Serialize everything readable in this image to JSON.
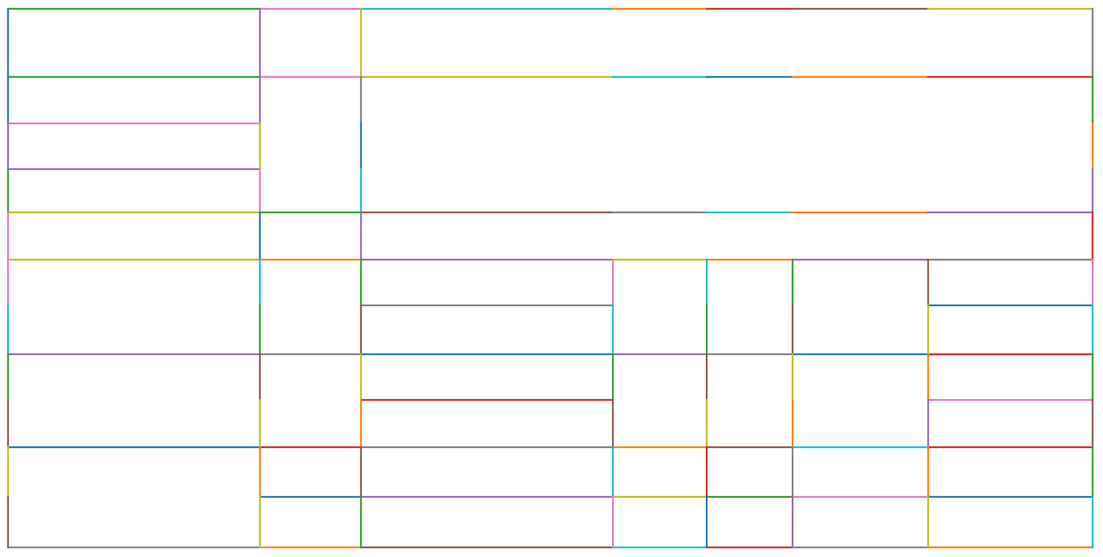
{
  "palette": {
    "blue": "#1f77b4",
    "orange": "#ff7f0e",
    "green": "#2ca02c",
    "red": "#d62728",
    "purple": "#9467bd",
    "brown": "#8c564b",
    "pink": "#e377c2",
    "gray": "#7f7f7f",
    "olive": "#bcbd22",
    "cyan": "#17becf"
  },
  "horizontal_edge_colors": [
    [
      "green",
      "pink",
      "cyan",
      "orange",
      "red",
      "brown",
      "olive"
    ],
    [
      "green",
      "pink",
      "olive",
      "cyan",
      "blue",
      "orange",
      "red"
    ],
    [
      "pink",
      null,
      null,
      null,
      null,
      null,
      null
    ],
    [
      "purple",
      null,
      null,
      null,
      null,
      null,
      null
    ],
    [
      "olive",
      "green",
      "brown",
      "gray",
      "cyan",
      "orange",
      "purple"
    ],
    [
      "olive",
      "orange",
      "purple",
      "olive",
      "orange",
      "purple",
      "gray"
    ],
    [
      null,
      null,
      "gray",
      null,
      null,
      null,
      "blue"
    ],
    [
      "purple",
      "gray",
      "blue",
      "purple",
      "gray",
      "blue",
      "red"
    ],
    [
      null,
      null,
      "red",
      null,
      null,
      null,
      "pink"
    ],
    [
      "blue",
      "red",
      "gray",
      "orange",
      "brown",
      "cyan",
      "red"
    ],
    [
      null,
      "blue",
      "purple",
      "olive",
      "green",
      "pink",
      "blue"
    ],
    [
      "gray",
      "orange",
      "brown",
      "cyan",
      "red",
      "gray",
      "orange"
    ]
  ],
  "vertical_edge_colors": [
    [
      "blue",
      "blue",
      "purple",
      "green",
      "pink",
      "pink",
      "cyan",
      "green",
      "brown",
      "olive",
      "brown"
    ],
    [
      "purple",
      "purple",
      "olive",
      "pink",
      "blue",
      "cyan",
      "green",
      "brown",
      "olive",
      "orange",
      "olive"
    ],
    [
      "olive",
      "gray",
      "blue",
      "cyan",
      "purple",
      "green",
      "brown",
      "olive",
      "orange",
      "brown",
      "green"
    ],
    [
      null,
      null,
      null,
      null,
      null,
      "pink",
      "cyan",
      "green",
      "brown",
      "cyan",
      "pink"
    ],
    [
      null,
      null,
      null,
      null,
      null,
      "cyan",
      "green",
      "brown",
      "olive",
      "red",
      "blue"
    ],
    [
      null,
      null,
      null,
      null,
      null,
      "green",
      "brown",
      "olive",
      "orange",
      "gray",
      "purple"
    ],
    [
      null,
      null,
      null,
      null,
      null,
      "brown",
      "olive",
      "orange",
      "purple",
      "orange",
      "olive"
    ],
    [
      "gray",
      "green",
      "orange",
      "purple",
      "red",
      "pink",
      "cyan",
      "green",
      "brown",
      "green",
      "cyan"
    ]
  ]
}
